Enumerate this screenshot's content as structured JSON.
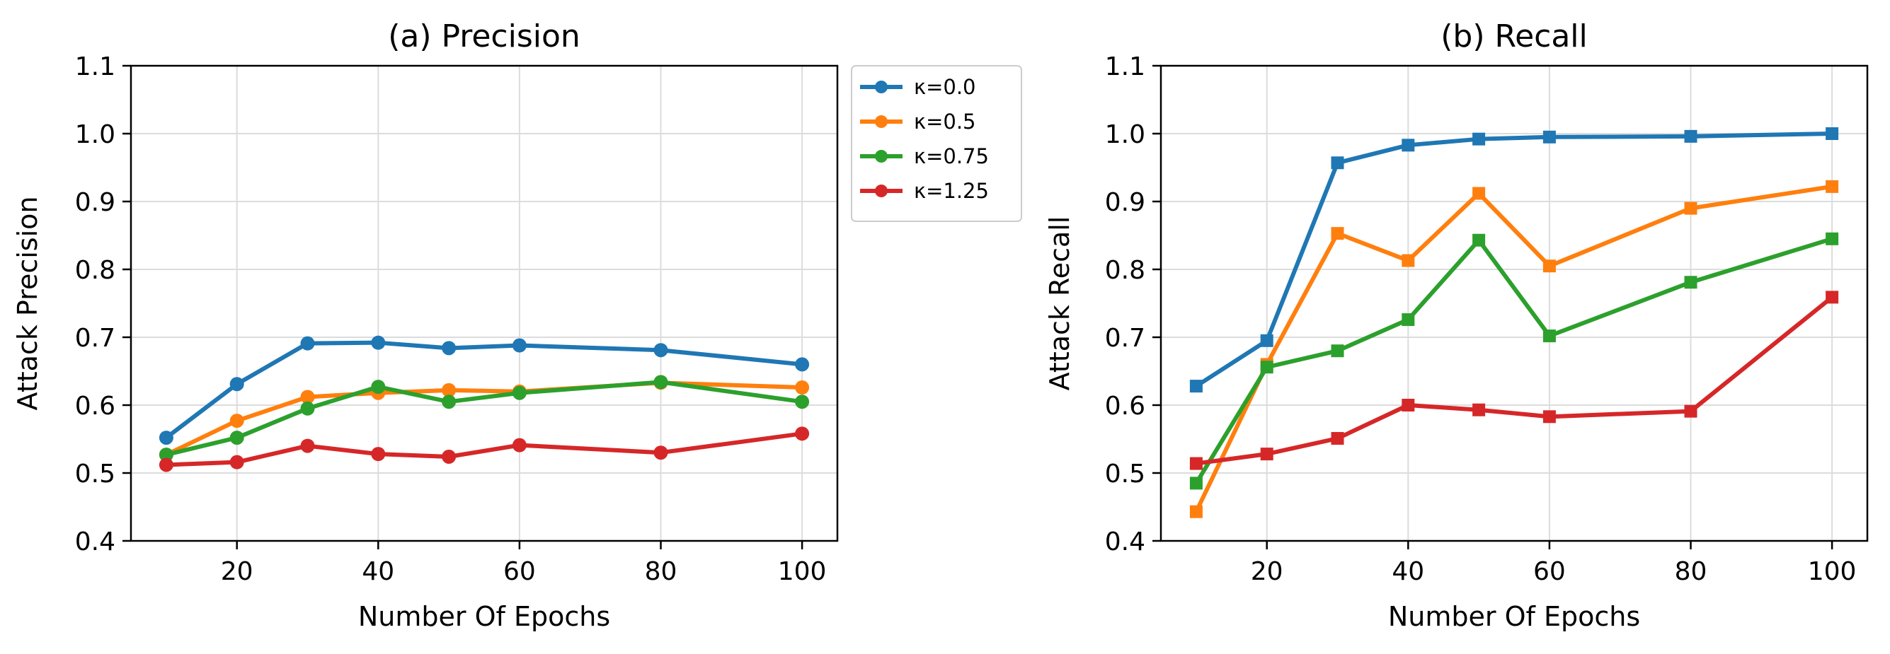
{
  "chart_data": [
    {
      "type": "line",
      "title": "(a) Precision",
      "xlabel": "Number Of Epochs",
      "ylabel": "Attack Precision",
      "x": [
        10,
        20,
        30,
        40,
        50,
        60,
        80,
        100
      ],
      "xlim": [
        5,
        105
      ],
      "ylim": [
        0.4,
        1.1
      ],
      "xticks": [
        20,
        40,
        60,
        80,
        100
      ],
      "yticks": [
        0.4,
        0.5,
        0.6,
        0.7,
        0.8,
        0.9,
        1.0,
        1.1
      ],
      "ytick_labels": [
        "0.4",
        "0.5",
        "0.6",
        "0.7",
        "0.8",
        "0.9",
        "1.0",
        "1.1"
      ],
      "grid": true,
      "marker": "circle",
      "legend_placement": "outside-right",
      "series": [
        {
          "name": "κ=0.0",
          "color": "#1f77b4",
          "values": [
            0.552,
            0.631,
            0.691,
            0.692,
            0.684,
            0.688,
            0.681,
            0.66
          ]
        },
        {
          "name": "κ=0.5",
          "color": "#ff7f0e",
          "values": [
            0.527,
            0.577,
            0.612,
            0.618,
            0.622,
            0.62,
            0.633,
            0.626
          ]
        },
        {
          "name": "κ=0.75",
          "color": "#2ca02c",
          "values": [
            0.527,
            0.552,
            0.595,
            0.627,
            0.605,
            0.618,
            0.634,
            0.605
          ]
        },
        {
          "name": "κ=1.25",
          "color": "#d62728",
          "values": [
            0.512,
            0.516,
            0.54,
            0.528,
            0.524,
            0.541,
            0.53,
            0.558
          ]
        }
      ]
    },
    {
      "type": "line",
      "title": "(b) Recall",
      "xlabel": "Number Of Epochs",
      "ylabel": "Attack Recall",
      "x": [
        10,
        20,
        30,
        40,
        50,
        60,
        80,
        100
      ],
      "xlim": [
        5,
        105
      ],
      "ylim": [
        0.4,
        1.1
      ],
      "xticks": [
        20,
        40,
        60,
        80,
        100
      ],
      "yticks": [
        0.4,
        0.5,
        0.6,
        0.7,
        0.8,
        0.9,
        1.0,
        1.1
      ],
      "ytick_labels": [
        "0.4",
        "0.5",
        "0.6",
        "0.7",
        "0.8",
        "0.9",
        "1.0",
        "1.1"
      ],
      "grid": true,
      "marker": "square",
      "series": [
        {
          "color": "#1f77b4",
          "values": [
            0.628,
            0.695,
            0.957,
            0.983,
            0.992,
            0.995,
            0.996,
            1.0
          ]
        },
        {
          "color": "#ff7f0e",
          "values": [
            0.443,
            0.66,
            0.853,
            0.813,
            0.912,
            0.805,
            0.89,
            0.922
          ]
        },
        {
          "color": "#2ca02c",
          "values": [
            0.485,
            0.656,
            0.68,
            0.726,
            0.843,
            0.702,
            0.781,
            0.845
          ]
        },
        {
          "color": "#d62728",
          "values": [
            0.514,
            0.528,
            0.551,
            0.6,
            0.593,
            0.583,
            0.591,
            0.759
          ]
        }
      ]
    }
  ]
}
